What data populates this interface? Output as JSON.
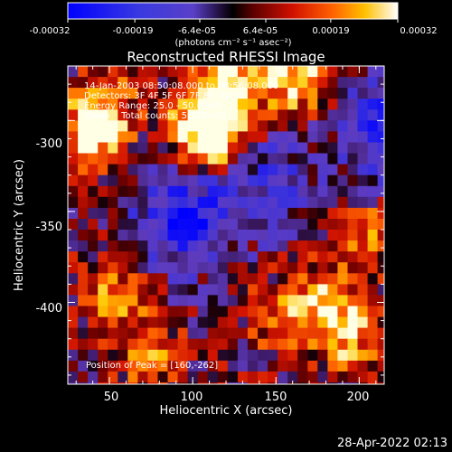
{
  "colorbar": {
    "tick_labels": [
      "-0.00032",
      "-0.00019",
      "-6.4e-05",
      "6.4e-05",
      "0.00019",
      "0.00032"
    ],
    "tick_values": [
      -0.00032,
      -0.00019,
      -6.4e-05,
      6.4e-05,
      0.00019,
      0.00032
    ],
    "range": [
      -0.00032,
      0.00032
    ],
    "units": "(photons cm⁻² s⁻¹ asec⁻²)"
  },
  "chart_data": {
    "type": "heatmap",
    "title": "Reconstructed RHESSI Image",
    "xlabel": "Heliocentric X (arcsec)",
    "ylabel": "Heliocentric Y (arcsec)",
    "xlim": [
      25,
      215
    ],
    "ylim": [
      -445,
      -270
    ],
    "x_ticks": [
      50,
      100,
      150,
      200
    ],
    "x_tick_labels": [
      "50",
      "100",
      "150",
      "200"
    ],
    "y_ticks": [
      -300,
      -350,
      -400
    ],
    "y_tick_labels": [
      "-300",
      "-350",
      "-400"
    ],
    "annotations": [
      "14-Jan-2003 08:50:08.000 to 08:56:08.000",
      "Detectors: 3F 4F 5F 6F 7F 8F, Att 0",
      "Energy Range: 25.0 - 50.0 keV",
      "Clean    Total counts: 5.52E+03"
    ],
    "peak_label": "Position of Peak = [160,-262]",
    "peak_position": [
      160,
      -262
    ],
    "bright_regions": [
      {
        "x": 120,
        "y": -278,
        "level": 1.0
      },
      {
        "x": 113,
        "y": -305,
        "level": 0.95
      },
      {
        "x": 100,
        "y": -300,
        "level": 0.8
      },
      {
        "x": 160,
        "y": -275,
        "level": 0.9
      },
      {
        "x": 35,
        "y": -305,
        "level": 0.75
      },
      {
        "x": 45,
        "y": -290,
        "level": 0.6
      },
      {
        "x": 200,
        "y": -360,
        "level": 0.55
      },
      {
        "x": 190,
        "y": -415,
        "level": 0.75
      },
      {
        "x": 50,
        "y": -390,
        "level": 0.6
      },
      {
        "x": 70,
        "y": -425,
        "level": 0.6
      },
      {
        "x": 150,
        "y": -405,
        "level": 0.55
      },
      {
        "x": 175,
        "y": -395,
        "level": 0.6
      }
    ],
    "dark_regions": [
      {
        "x": 90,
        "y": -350,
        "level": -0.8
      },
      {
        "x": 140,
        "y": -330,
        "level": -0.5
      },
      {
        "x": 215,
        "y": -300,
        "level": -0.85
      }
    ]
  },
  "timestamp": "28-Apr-2022 02:13"
}
